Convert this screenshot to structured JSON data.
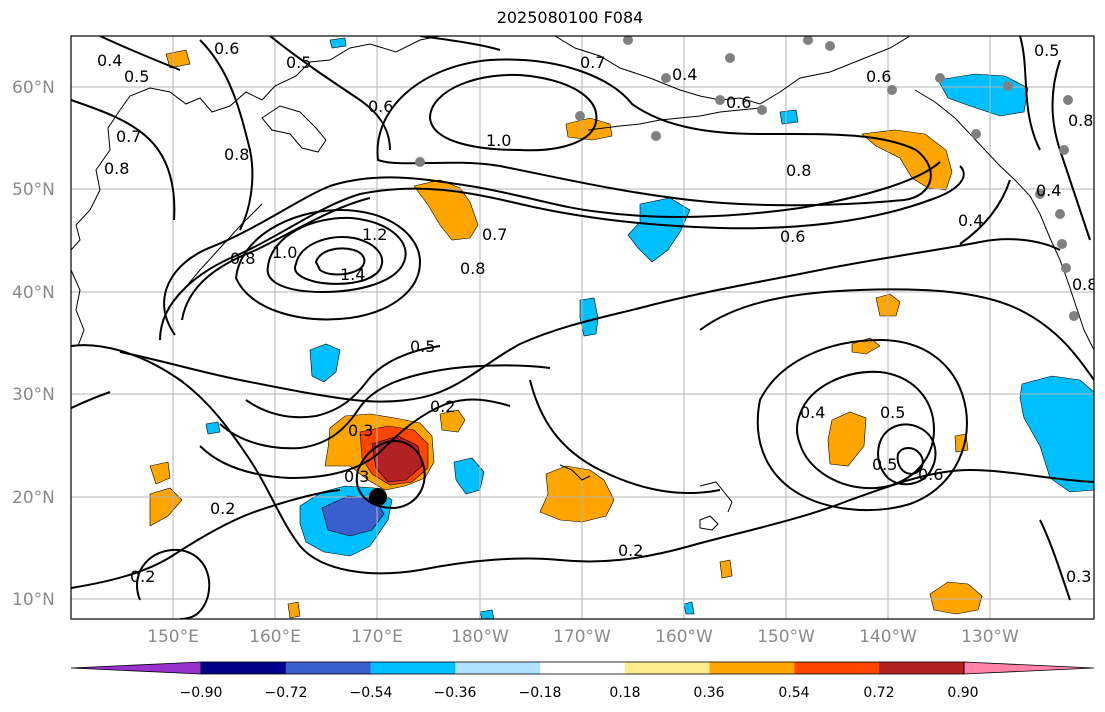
{
  "title": "2025080100 F084",
  "axes": {
    "lon_ticks": [
      "150°E",
      "160°E",
      "170°E",
      "180°W",
      "170°W",
      "160°W",
      "150°W",
      "140°W",
      "130°W"
    ],
    "lat_ticks": [
      "60°N",
      "50°N",
      "40°N",
      "30°N",
      "20°N",
      "10°N"
    ]
  },
  "contour_labels": [
    "0.4",
    "0.5",
    "0.6",
    "0.5",
    "0.7",
    "0.8",
    "0.8",
    "0.6",
    "1.0",
    "0.7",
    "0.4",
    "0.6",
    "0.5",
    "0.6",
    "0.8",
    "0.8",
    "0.6",
    "0.4",
    "0.8",
    "1.0",
    "1.2",
    "1.4",
    "0.7",
    "0.8",
    "0.5",
    "0.2",
    "0.3",
    "0.3",
    "0.2",
    "0.2",
    "0.2",
    "0.4",
    "0.5",
    "0.5",
    "0.6",
    "0.3",
    "0.4",
    "0.8"
  ],
  "colorbar": {
    "tick_labels": [
      "−0.90",
      "−0.72",
      "−0.54",
      "−0.36",
      "−0.18",
      "0.18",
      "0.36",
      "0.54",
      "0.72",
      "0.90"
    ],
    "colors": [
      "#9932cc",
      "#00008b",
      "#3a5fcd",
      "#00bfff",
      "#b0e2ff",
      "#ffffff",
      "#ffec8b",
      "#ffa500",
      "#ff4500",
      "#b22222",
      "#ff82ab"
    ]
  }
}
